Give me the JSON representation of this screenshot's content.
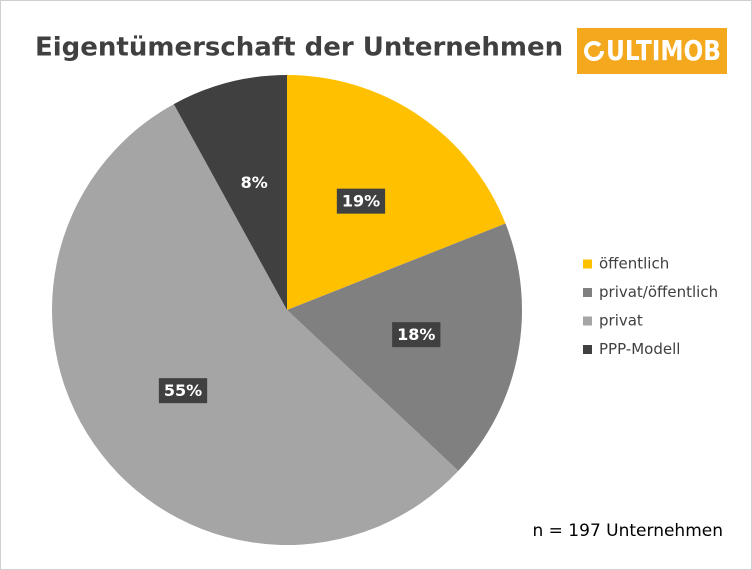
{
  "chart_data": {
    "type": "pie",
    "title": "Eigentümerschaft der Unternehmen",
    "logo": "ULTIMOB",
    "annotation": "n = 197 Unternehmen",
    "categories": [
      "öffentlich",
      "privat/öffentlich",
      "privat",
      "PPP-Modell"
    ],
    "values": [
      19,
      18,
      55,
      8
    ],
    "value_labels": [
      "19%",
      "18%",
      "55%",
      "8%"
    ],
    "colors": [
      "#ffc000",
      "#808080",
      "#a5a5a5",
      "#404040"
    ],
    "legend": "right"
  }
}
